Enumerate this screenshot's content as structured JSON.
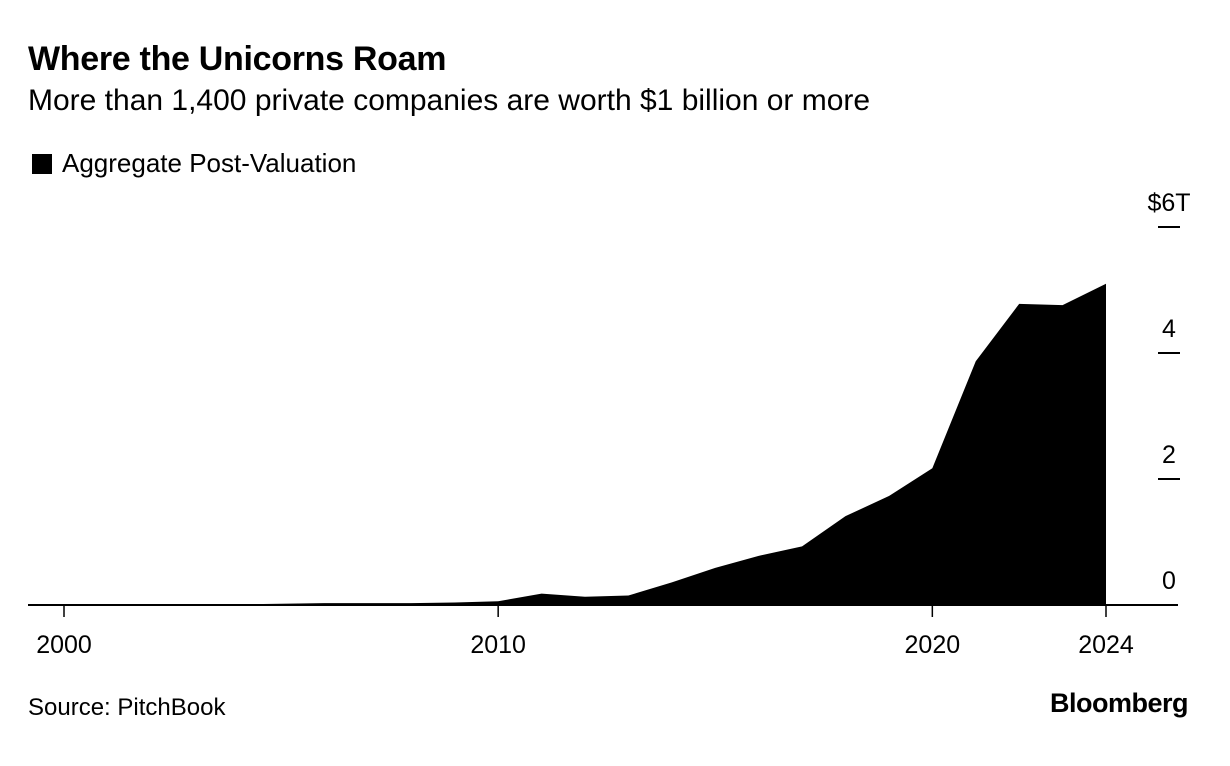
{
  "header": {
    "title": "Where the Unicorns Roam",
    "subtitle": "More than 1,400 private companies are worth $1 billion or more"
  },
  "footer": {
    "source": "Source: PitchBook",
    "logo": "Bloomberg"
  },
  "colors": {
    "series": "#000000",
    "axis": "#000000",
    "background": "#ffffff"
  },
  "chart_data": {
    "type": "area",
    "title": "Where the Unicorns Roam",
    "subtitle": "More than 1,400 private companies are worth $1 billion or more",
    "xlabel": "",
    "ylabel": "",
    "xlim": [
      2000,
      2024
    ],
    "ylim": [
      0,
      6
    ],
    "grid": false,
    "legend_position": "top-left",
    "x_ticks": [
      {
        "value": 2000,
        "label": "2000"
      },
      {
        "value": 2010,
        "label": "2010"
      },
      {
        "value": 2020,
        "label": "2020"
      },
      {
        "value": 2024,
        "label": "2024"
      }
    ],
    "y_ticks": [
      {
        "value": 0,
        "label": "0"
      },
      {
        "value": 2,
        "label": "2"
      },
      {
        "value": 4,
        "label": "4"
      },
      {
        "value": 6,
        "label": "$6T"
      }
    ],
    "series": [
      {
        "name": "Aggregate Post-Valuation",
        "color": "#000000",
        "x": [
          2000,
          2001,
          2002,
          2003,
          2004,
          2005,
          2006,
          2007,
          2008,
          2009,
          2010,
          2011,
          2012,
          2013,
          2014,
          2015,
          2016,
          2017,
          2018,
          2019,
          2020,
          2021,
          2022,
          2023,
          2024
        ],
        "y": [
          0.01,
          0.01,
          0.01,
          0.01,
          0.01,
          0.02,
          0.03,
          0.03,
          0.03,
          0.04,
          0.06,
          0.18,
          0.13,
          0.15,
          0.36,
          0.59,
          0.78,
          0.93,
          1.41,
          1.73,
          2.17,
          3.87,
          4.78,
          4.76,
          5.1
        ]
      }
    ]
  }
}
